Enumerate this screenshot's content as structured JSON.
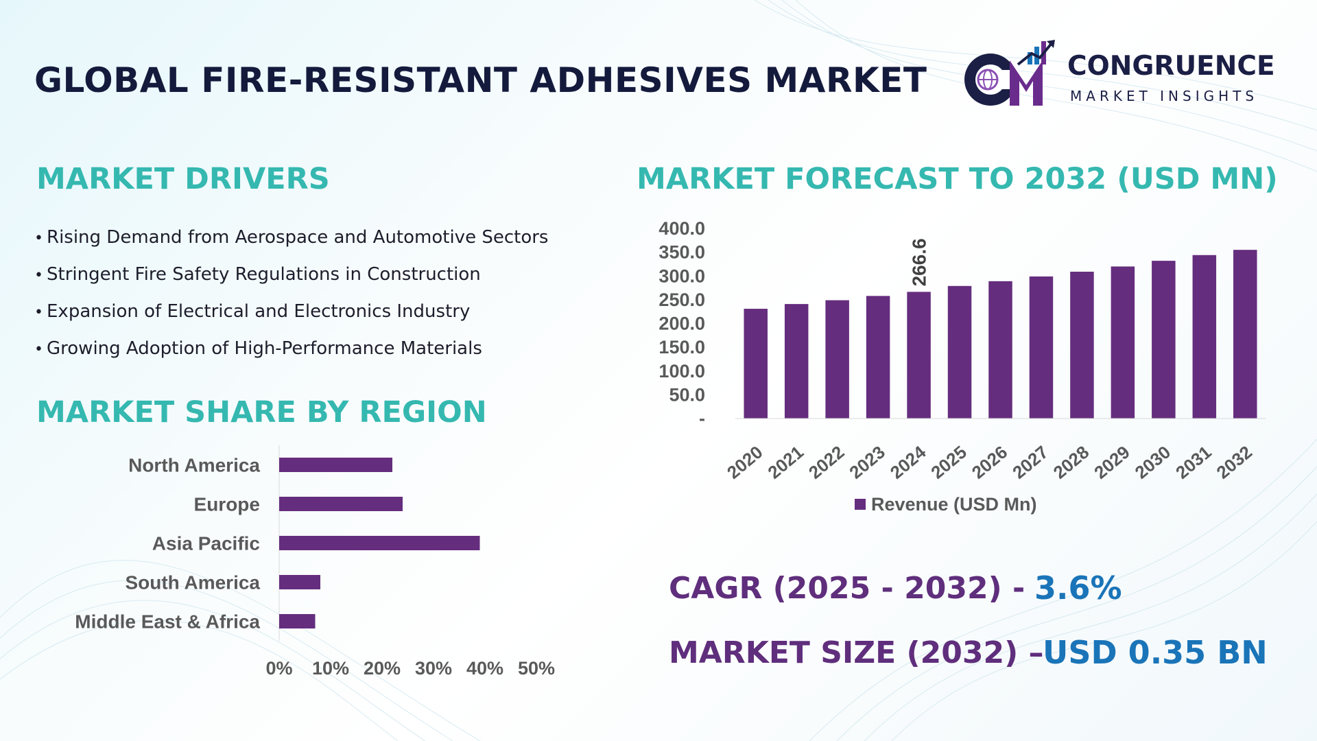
{
  "header": {
    "title": "GLOBAL FIRE-RESISTANT ADHESIVES MARKET",
    "logo": {
      "initials": "CM",
      "name": "CONGRUENCE",
      "tagline": "MARKET INSIGHTS",
      "colors": {
        "navy": "#1b1f45",
        "purple": "#6a2c8c",
        "blue": "#1a74b8",
        "globe": "#8a4fb3"
      }
    }
  },
  "drivers": {
    "heading": "MARKET DRIVERS",
    "bullet": "•",
    "items": [
      "Rising Demand from Aerospace and Automotive Sectors",
      "Stringent Fire Safety Regulations in Construction",
      "Expansion of Electrical and Electronics Industry",
      "Growing Adoption of High-Performance Materials"
    ]
  },
  "region_section": {
    "heading": "MARKET SHARE BY REGION"
  },
  "forecast_section": {
    "heading": "MARKET FORECAST TO 2032 (USD MN)"
  },
  "kpis": {
    "cagr_label": "CAGR (2025 - 2032) -",
    "cagr_value": "3.6%",
    "size_label": "MARKET SIZE (2032) –",
    "size_value": "USD 0.35 BN"
  },
  "colors": {
    "bar": "#652d7e",
    "heading_teal": "#35b8b0",
    "kpi_label": "#5f2e7c",
    "kpi_value": "#1a74b8",
    "axis_text": "#595959",
    "title_navy": "#141a3c"
  },
  "chart_data": [
    {
      "type": "bar",
      "orientation": "vertical",
      "categories": [
        "2020",
        "2021",
        "2022",
        "2023",
        "2024",
        "2025",
        "2026",
        "2027",
        "2028",
        "2029",
        "2030",
        "2031",
        "2032"
      ],
      "series": [
        {
          "name": "Revenue (USD Mn)",
          "values": [
            231,
            241,
            249,
            258,
            266.6,
            279,
            289,
            299,
            309,
            320,
            332,
            344,
            355
          ]
        }
      ],
      "data_labels": [
        {
          "category": "2024",
          "text": "266.6"
        }
      ],
      "yticks": [
        "-",
        "50.0",
        "100.0",
        "150.0",
        "200.0",
        "250.0",
        "300.0",
        "350.0",
        "400.0"
      ],
      "ylim": [
        0,
        400
      ],
      "legend": "bottom",
      "grid": false
    },
    {
      "type": "bar",
      "orientation": "horizontal",
      "categories": [
        "North America",
        "Europe",
        "Asia Pacific",
        "South America",
        "Middle East & Africa"
      ],
      "values": [
        22,
        24,
        39,
        8,
        7
      ],
      "xticks": [
        "0%",
        "10%",
        "20%",
        "30%",
        "40%",
        "50%"
      ],
      "xlim": [
        0,
        50
      ],
      "unit": "%",
      "grid": false
    }
  ]
}
